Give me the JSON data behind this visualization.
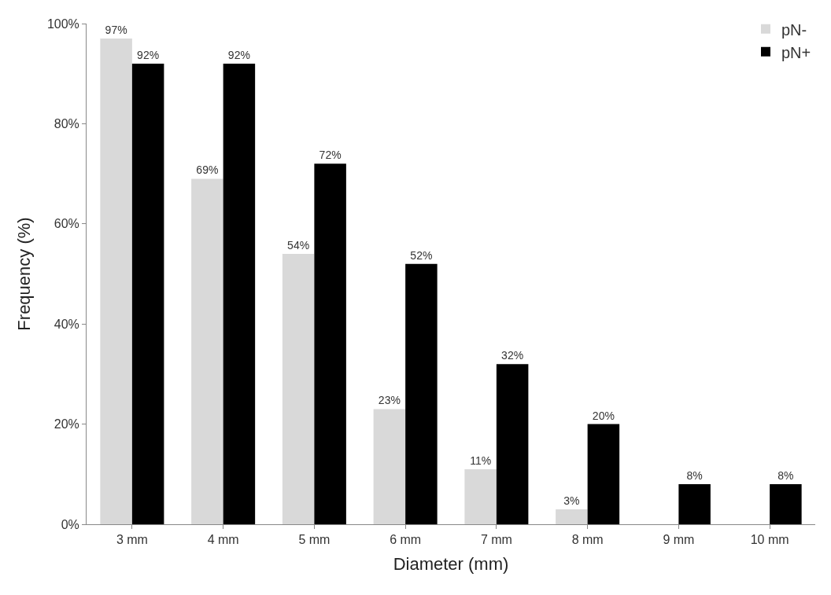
{
  "chart_data": {
    "type": "bar",
    "xlabel": "Diameter (mm)",
    "ylabel": "Frequency (%)",
    "categories": [
      "3 mm",
      "4 mm",
      "5 mm",
      "6 mm",
      "7 mm",
      "8 mm",
      "9 mm",
      "10 mm"
    ],
    "series": [
      {
        "name": "pN-",
        "color": "#d9d9d9",
        "values": [
          97,
          69,
          54,
          23,
          11,
          3,
          null,
          null
        ],
        "value_labels": [
          "97%",
          "69%",
          "54%",
          "23%",
          "11%",
          "3%",
          null,
          null
        ]
      },
      {
        "name": "pN+",
        "color": "#000000",
        "values": [
          92,
          92,
          72,
          52,
          32,
          20,
          8,
          8
        ],
        "value_labels": [
          "92%",
          "92%",
          "72%",
          "52%",
          "32%",
          "20%",
          "8%",
          "8%"
        ]
      }
    ],
    "ylim": [
      0,
      100
    ],
    "yticks": [
      {
        "value": 0,
        "label": "0%"
      },
      {
        "value": 20,
        "label": "20%"
      },
      {
        "value": 40,
        "label": "40%"
      },
      {
        "value": 60,
        "label": "60%"
      },
      {
        "value": 80,
        "label": "80%"
      },
      {
        "value": 100,
        "label": "100%"
      }
    ],
    "legend": "top right"
  }
}
